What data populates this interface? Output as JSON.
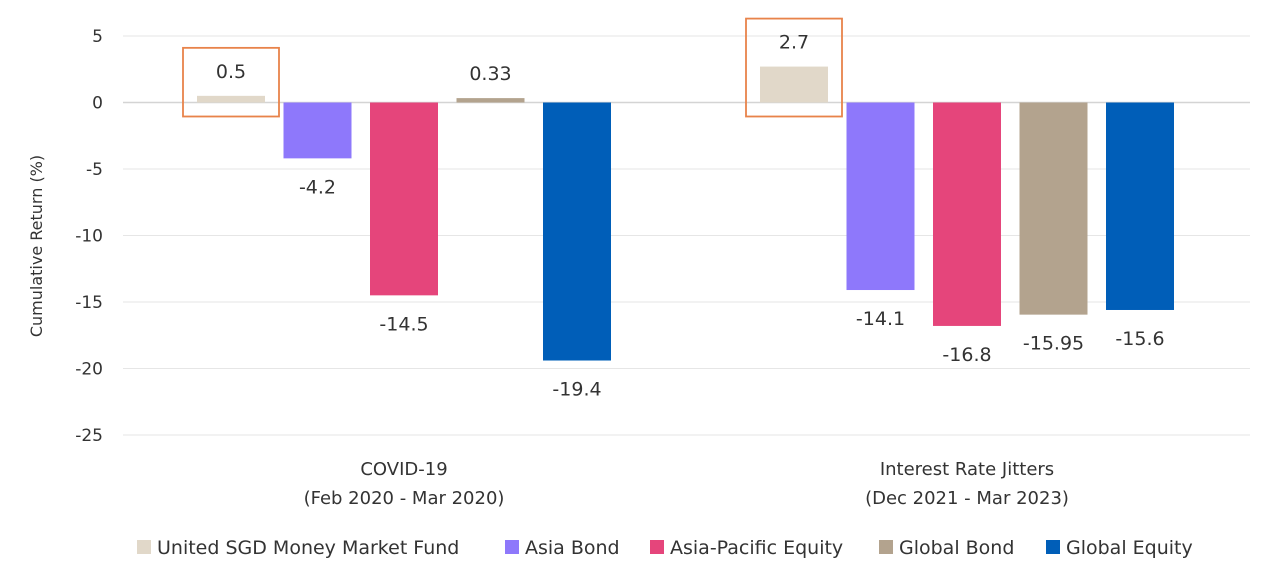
{
  "chart_data": {
    "type": "bar",
    "ylabel": "Cumulative Return (%)",
    "ylim": [
      -25,
      5
    ],
    "yticks": [
      5,
      0,
      -5,
      -10,
      -15,
      -20,
      -25
    ],
    "grid": true,
    "legend_position": "bottom",
    "categories": [
      [
        "COVID-19",
        "(Feb 2020 - Mar 2020)"
      ],
      [
        "Interest Rate Jitters",
        "(Dec 2021 - Mar 2023)"
      ]
    ],
    "series": [
      {
        "name": "United SGD Money Market Fund",
        "color": "#e1d8c9",
        "values": [
          0.5,
          2.7
        ],
        "labels": [
          "0.5",
          "2.7"
        ],
        "highlight": true
      },
      {
        "name": "Asia Bond",
        "color": "#8e78fb",
        "values": [
          -4.2,
          -14.1
        ],
        "labels": [
          "-4.2",
          "-14.1"
        ]
      },
      {
        "name": "Asia-Pacific Equity",
        "color": "#e5457b",
        "values": [
          -14.5,
          -16.8
        ],
        "labels": [
          "-14.5",
          "-16.8"
        ]
      },
      {
        "name": "Global Bond",
        "color": "#b3a38e",
        "values": [
          0.33,
          -15.95
        ],
        "labels": [
          "0.33",
          "-15.95"
        ]
      },
      {
        "name": "Global Equity",
        "color": "#005eb8",
        "values": [
          -19.4,
          -15.6
        ],
        "labels": [
          "-19.4",
          "-15.6"
        ]
      }
    ],
    "highlight_color": "#e8834a"
  }
}
